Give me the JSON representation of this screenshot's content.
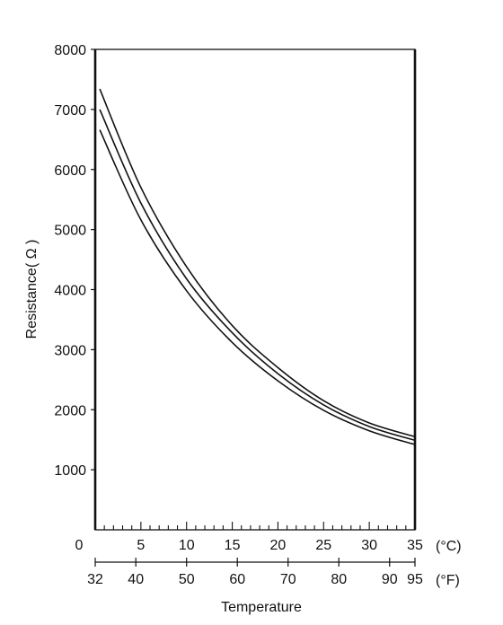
{
  "chart_data": {
    "type": "line",
    "title": "",
    "xlabel": "Temperature",
    "ylabel": "Resistance( Ω )",
    "x_unit_celsius": "(°C)",
    "x_unit_fahrenheit": "(°F)",
    "xlim_celsius": [
      0,
      35
    ],
    "ylim": [
      0,
      8000
    ],
    "grid": false,
    "y_ticks": [
      {
        "value": 1000,
        "label": "1000"
      },
      {
        "value": 2000,
        "label": "2000"
      },
      {
        "value": 3000,
        "label": "3000"
      },
      {
        "value": 4000,
        "label": "4000"
      },
      {
        "value": 5000,
        "label": "5000"
      },
      {
        "value": 6000,
        "label": "6000"
      },
      {
        "value": 7000,
        "label": "7000"
      },
      {
        "value": 8000,
        "label": "8000"
      }
    ],
    "y_zero_label": "0",
    "x_ticks_celsius": [
      {
        "value": 5,
        "label": "5"
      },
      {
        "value": 10,
        "label": "10"
      },
      {
        "value": 15,
        "label": "15"
      },
      {
        "value": 20,
        "label": "20"
      },
      {
        "value": 25,
        "label": "25"
      },
      {
        "value": 30,
        "label": "30"
      },
      {
        "value": 35,
        "label": "35"
      }
    ],
    "x_ticks_fahrenheit": [
      {
        "value": 32,
        "label": "32"
      },
      {
        "value": 40,
        "label": "40"
      },
      {
        "value": 50,
        "label": "50"
      },
      {
        "value": 60,
        "label": "60"
      },
      {
        "value": 70,
        "label": "70"
      },
      {
        "value": 80,
        "label": "80"
      },
      {
        "value": 90,
        "label": "90"
      },
      {
        "value": 95,
        "label": "95"
      }
    ],
    "series": [
      {
        "x": [
          0.5,
          5,
          10,
          15,
          20,
          25,
          30,
          35
        ],
        "values": [
          7340,
          5700,
          4380,
          3400,
          2700,
          2150,
          1780,
          1550
        ]
      },
      {
        "x": [
          0.5,
          5,
          10,
          15,
          20,
          25,
          30,
          35
        ],
        "values": [
          7000,
          5440,
          4180,
          3280,
          2600,
          2080,
          1720,
          1490
        ]
      },
      {
        "x": [
          0.5,
          5,
          10,
          15,
          20,
          25,
          30,
          35
        ],
        "values": [
          6660,
          5160,
          3980,
          3120,
          2480,
          1990,
          1650,
          1420
        ]
      }
    ]
  }
}
